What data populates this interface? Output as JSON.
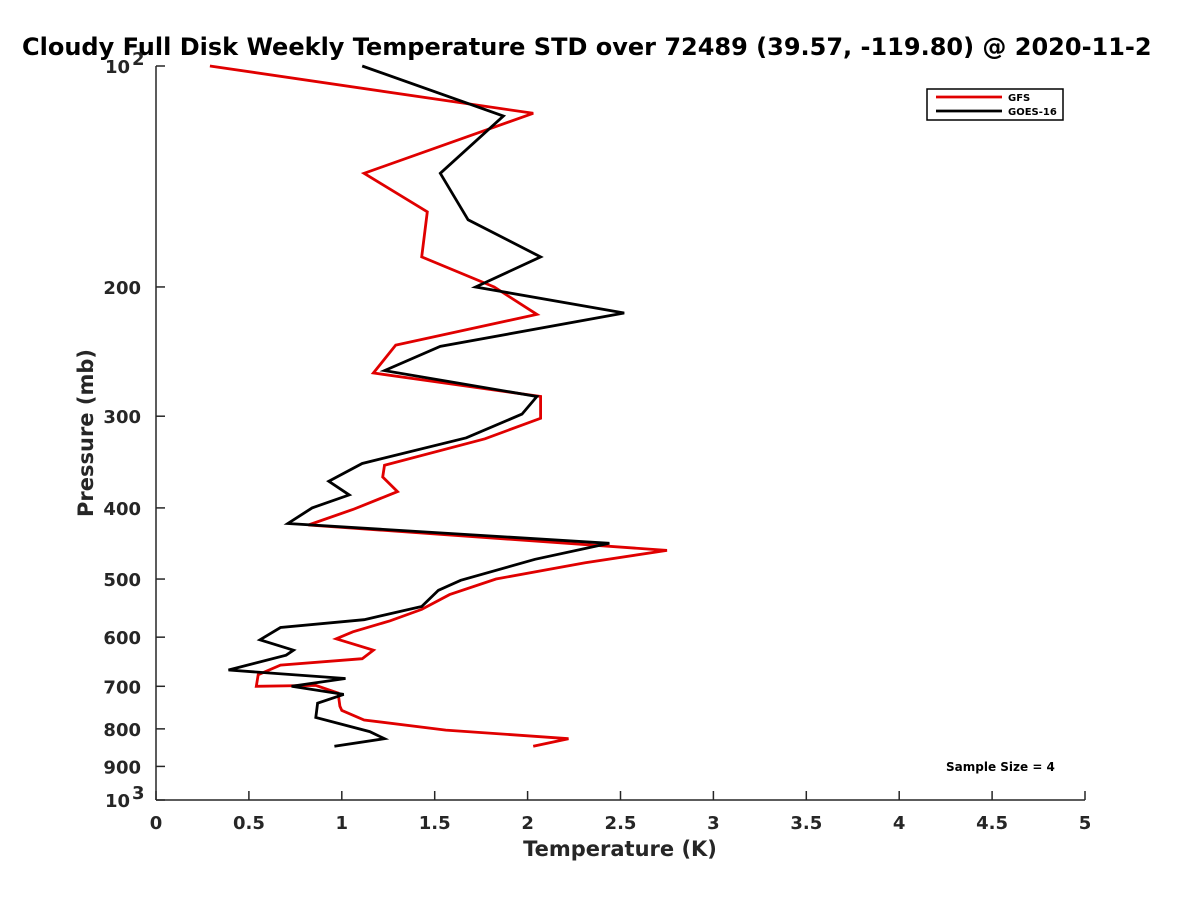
{
  "chart_data": {
    "type": "line",
    "title": "Cloudy Full Disk Weekly Temperature STD over 72489 (39.57, -119.80) @ 2020-11-2",
    "xlabel": "Temperature (K)",
    "ylabel": "Pressure (mb)",
    "xlim": [
      0,
      5
    ],
    "ylim": [
      100,
      1000
    ],
    "y_scale": "log",
    "y_reversed": true,
    "grid": false,
    "legend_position": "top-right",
    "x_ticks": [
      {
        "value": 0,
        "label": "0"
      },
      {
        "value": 0.5,
        "label": "0.5"
      },
      {
        "value": 1,
        "label": "1"
      },
      {
        "value": 1.5,
        "label": "1.5"
      },
      {
        "value": 2,
        "label": "2"
      },
      {
        "value": 2.5,
        "label": "2.5"
      },
      {
        "value": 3,
        "label": "3"
      },
      {
        "value": 3.5,
        "label": "3.5"
      },
      {
        "value": 4,
        "label": "4"
      },
      {
        "value": 4.5,
        "label": "4.5"
      },
      {
        "value": 5,
        "label": "5"
      }
    ],
    "y_ticks": [
      {
        "value": 100,
        "label": "10",
        "sup": "2"
      },
      {
        "value": 200,
        "label": "200"
      },
      {
        "value": 300,
        "label": "300"
      },
      {
        "value": 400,
        "label": "400"
      },
      {
        "value": 500,
        "label": "500"
      },
      {
        "value": 600,
        "label": "600"
      },
      {
        "value": 700,
        "label": "700"
      },
      {
        "value": 800,
        "label": "800"
      },
      {
        "value": 900,
        "label": "900"
      },
      {
        "value": 1000,
        "label": "10",
        "sup": "3"
      }
    ],
    "annotation": "Sample Size = 4",
    "series": [
      {
        "name": "GFS",
        "color": "#e00000",
        "points": [
          {
            "x": 0.29,
            "y": 100
          },
          {
            "x": 2.03,
            "y": 116
          },
          {
            "x": 1.12,
            "y": 140
          },
          {
            "x": 1.46,
            "y": 158
          },
          {
            "x": 1.43,
            "y": 182
          },
          {
            "x": 1.82,
            "y": 200
          },
          {
            "x": 2.05,
            "y": 218
          },
          {
            "x": 1.29,
            "y": 240
          },
          {
            "x": 1.17,
            "y": 262
          },
          {
            "x": 2.07,
            "y": 282
          },
          {
            "x": 2.07,
            "y": 302
          },
          {
            "x": 1.77,
            "y": 322
          },
          {
            "x": 1.23,
            "y": 350
          },
          {
            "x": 1.22,
            "y": 363
          },
          {
            "x": 1.3,
            "y": 380
          },
          {
            "x": 1.06,
            "y": 402
          },
          {
            "x": 0.82,
            "y": 422
          },
          {
            "x": 2.75,
            "y": 457
          },
          {
            "x": 2.31,
            "y": 475
          },
          {
            "x": 1.83,
            "y": 500
          },
          {
            "x": 1.58,
            "y": 525
          },
          {
            "x": 1.43,
            "y": 550
          },
          {
            "x": 1.26,
            "y": 570
          },
          {
            "x": 1.06,
            "y": 590
          },
          {
            "x": 0.97,
            "y": 603
          },
          {
            "x": 1.17,
            "y": 625
          },
          {
            "x": 1.11,
            "y": 642
          },
          {
            "x": 0.67,
            "y": 655
          },
          {
            "x": 0.55,
            "y": 675
          },
          {
            "x": 0.54,
            "y": 700
          },
          {
            "x": 0.86,
            "y": 698
          },
          {
            "x": 0.98,
            "y": 715
          },
          {
            "x": 0.99,
            "y": 745
          },
          {
            "x": 1.0,
            "y": 755
          },
          {
            "x": 1.12,
            "y": 778
          },
          {
            "x": 1.56,
            "y": 803
          },
          {
            "x": 2.22,
            "y": 825
          },
          {
            "x": 2.03,
            "y": 845
          }
        ]
      },
      {
        "name": "GOES-16",
        "color": "#000000",
        "points": [
          {
            "x": 1.11,
            "y": 100
          },
          {
            "x": 1.87,
            "y": 117
          },
          {
            "x": 1.53,
            "y": 140
          },
          {
            "x": 1.68,
            "y": 162
          },
          {
            "x": 2.07,
            "y": 182
          },
          {
            "x": 1.72,
            "y": 200
          },
          {
            "x": 2.52,
            "y": 217
          },
          {
            "x": 1.53,
            "y": 241
          },
          {
            "x": 1.23,
            "y": 260
          },
          {
            "x": 2.05,
            "y": 282
          },
          {
            "x": 1.97,
            "y": 298
          },
          {
            "x": 1.67,
            "y": 321
          },
          {
            "x": 1.11,
            "y": 348
          },
          {
            "x": 0.93,
            "y": 368
          },
          {
            "x": 1.04,
            "y": 384
          },
          {
            "x": 0.84,
            "y": 400
          },
          {
            "x": 0.71,
            "y": 420
          },
          {
            "x": 2.44,
            "y": 447
          },
          {
            "x": 2.04,
            "y": 470
          },
          {
            "x": 1.64,
            "y": 502
          },
          {
            "x": 1.52,
            "y": 518
          },
          {
            "x": 1.43,
            "y": 545
          },
          {
            "x": 1.12,
            "y": 568
          },
          {
            "x": 0.67,
            "y": 582
          },
          {
            "x": 0.56,
            "y": 605
          },
          {
            "x": 0.74,
            "y": 625
          },
          {
            "x": 0.7,
            "y": 635
          },
          {
            "x": 0.39,
            "y": 665
          },
          {
            "x": 1.02,
            "y": 683
          },
          {
            "x": 0.73,
            "y": 700
          },
          {
            "x": 1.01,
            "y": 718
          },
          {
            "x": 0.87,
            "y": 738
          },
          {
            "x": 0.86,
            "y": 772
          },
          {
            "x": 1.15,
            "y": 807
          },
          {
            "x": 1.23,
            "y": 825
          },
          {
            "x": 0.96,
            "y": 845
          }
        ]
      }
    ]
  }
}
